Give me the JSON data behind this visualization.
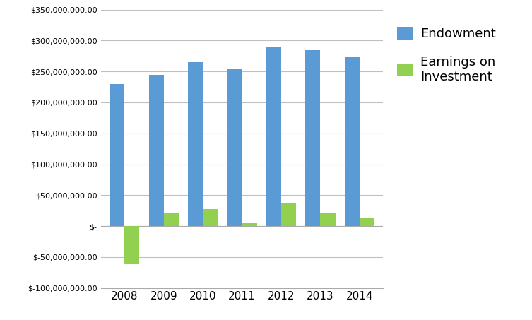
{
  "years": [
    2008,
    2009,
    2010,
    2011,
    2012,
    2013,
    2014
  ],
  "endowment": [
    230000000,
    245000000,
    265000000,
    255000000,
    290000000,
    284000000,
    273000000
  ],
  "earnings": [
    -62000000,
    21000000,
    28000000,
    5000000,
    38000000,
    22000000,
    14000000
  ],
  "endowment_color": "#5B9BD5",
  "earnings_color": "#92D050",
  "ylim": [
    -100000000,
    350000000
  ],
  "ytick_step": 50000000,
  "legend_labels": [
    "Endowment",
    "Earnings on\nInvestment"
  ],
  "background_color": "#FFFFFF",
  "grid_color": "#BFBFBF",
  "bar_width": 0.38
}
